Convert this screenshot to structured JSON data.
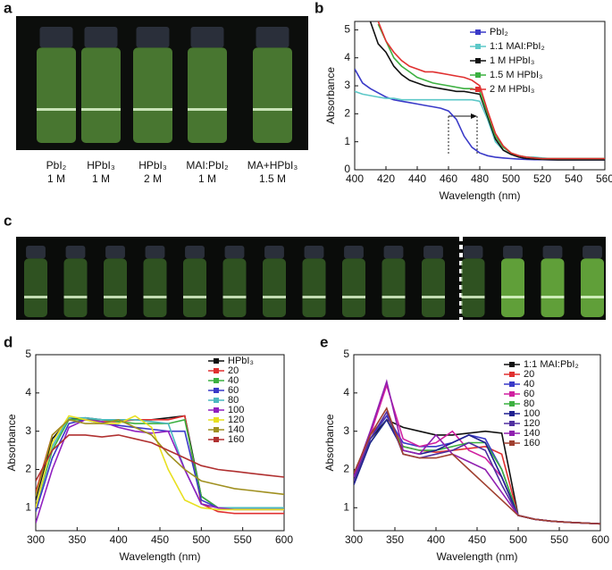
{
  "panel_labels": [
    "a",
    "b",
    "c",
    "d",
    "e"
  ],
  "photo_a": {
    "captions": [
      [
        "PbI₂",
        "1 M"
      ],
      [
        "HPbI₃",
        "1 M"
      ],
      [
        "HPbI₃",
        "2 M"
      ],
      [
        "MAI:PbI₂",
        "1 M"
      ],
      [
        "MA+HPbI₃",
        "1.5 M"
      ]
    ]
  },
  "chart_data": [
    {
      "type": "line",
      "xlabel": "Wavelength (nm)",
      "ylabel": "Absorbance",
      "x": [
        400,
        405,
        410,
        415,
        420,
        425,
        430,
        435,
        440,
        445,
        450,
        455,
        460,
        465,
        470,
        475,
        480,
        485,
        490,
        495,
        500,
        505,
        510,
        515,
        520,
        525,
        530,
        535,
        540,
        545,
        550,
        555,
        560
      ],
      "xlim": [
        400,
        560
      ],
      "xticks": [
        400,
        420,
        440,
        460,
        480,
        500,
        520,
        540,
        560
      ],
      "ylim": [
        0,
        5.3
      ],
      "yticks": [
        0,
        1,
        2,
        3,
        4,
        5
      ],
      "legend": "upper right",
      "series": [
        {
          "name": "PbI₂",
          "color": "#3a3ac8",
          "values": [
            3.6,
            3.1,
            2.9,
            2.75,
            2.6,
            2.5,
            2.45,
            2.4,
            2.35,
            2.3,
            2.25,
            2.2,
            2.1,
            1.8,
            1.2,
            0.8,
            0.6,
            0.5,
            0.45,
            0.42,
            0.4,
            0.38,
            0.37,
            0.36,
            0.36,
            0.35,
            0.35,
            0.35,
            0.35,
            0.35,
            0.35,
            0.35,
            0.35
          ]
        },
        {
          "name": "1:1 MAI:PbI₂",
          "color": "#5cc8c8",
          "values": [
            2.8,
            2.7,
            2.65,
            2.6,
            2.55,
            2.55,
            2.5,
            2.5,
            2.5,
            2.5,
            2.5,
            2.5,
            2.5,
            2.5,
            2.5,
            2.5,
            2.45,
            1.8,
            1.0,
            0.7,
            0.55,
            0.5,
            0.45,
            0.45,
            0.42,
            0.4,
            0.4,
            0.4,
            0.4,
            0.4,
            0.4,
            0.4,
            0.4
          ]
        },
        {
          "name": "1 M HPbI₃",
          "color": "#111111",
          "values": [
            null,
            null,
            5.3,
            4.5,
            4.2,
            3.7,
            3.4,
            3.2,
            3.1,
            3.0,
            2.95,
            2.9,
            2.85,
            2.8,
            2.8,
            2.75,
            2.7,
            1.9,
            1.1,
            0.7,
            0.55,
            0.45,
            0.4,
            0.38,
            0.37,
            0.36,
            0.35,
            0.35,
            0.35,
            0.35,
            0.35,
            0.35,
            0.35
          ]
        },
        {
          "name": "1.5 M HPbI₃",
          "color": "#3cb040",
          "values": [
            null,
            null,
            null,
            5.2,
            4.6,
            4.0,
            3.7,
            3.5,
            3.3,
            3.2,
            3.1,
            3.05,
            3.0,
            2.95,
            2.9,
            2.9,
            2.8,
            2.0,
            1.2,
            0.8,
            0.6,
            0.5,
            0.45,
            0.42,
            0.4,
            0.4,
            0.4,
            0.4,
            0.4,
            0.4,
            0.4,
            0.4,
            0.4
          ]
        },
        {
          "name": "2 M HPbI₃",
          "color": "#e03030",
          "values": [
            null,
            null,
            null,
            5.3,
            4.6,
            4.2,
            3.9,
            3.7,
            3.6,
            3.5,
            3.5,
            3.45,
            3.4,
            3.35,
            3.3,
            3.2,
            3.0,
            2.1,
            1.3,
            0.85,
            0.6,
            0.5,
            0.45,
            0.42,
            0.4,
            0.4,
            0.4,
            0.4,
            0.4,
            0.4,
            0.4,
            0.4,
            0.4
          ]
        }
      ]
    },
    {
      "type": "line",
      "xlabel": "Wavelength (nm)",
      "ylabel": "Absorbance",
      "x": [
        300,
        320,
        340,
        360,
        380,
        400,
        420,
        440,
        460,
        480,
        500,
        520,
        540,
        560,
        580,
        600
      ],
      "xlim": [
        300,
        600
      ],
      "xticks": [
        300,
        350,
        400,
        450,
        500,
        550,
        600
      ],
      "ylim": [
        0.4,
        5
      ],
      "yticks": [
        1,
        2,
        3,
        4,
        5
      ],
      "legend": "upper right",
      "series": [
        {
          "name": "HPbI₃",
          "color": "#111111",
          "values": [
            1.2,
            2.8,
            3.3,
            3.35,
            3.3,
            3.3,
            3.3,
            3.3,
            3.35,
            3.4,
            1.3,
            1.0,
            1.0,
            1.0,
            1.0,
            1.0
          ]
        },
        {
          "name": "20",
          "color": "#e03030",
          "values": [
            1.4,
            2.9,
            3.3,
            3.3,
            3.25,
            3.25,
            3.3,
            3.3,
            3.3,
            3.4,
            1.1,
            0.9,
            0.85,
            0.85,
            0.85,
            0.85
          ]
        },
        {
          "name": "40",
          "color": "#3cb040",
          "values": [
            1.0,
            2.5,
            3.3,
            3.3,
            3.3,
            3.25,
            3.2,
            3.2,
            3.2,
            3.3,
            1.3,
            1.0,
            1.0,
            1.0,
            1.0,
            1.0
          ]
        },
        {
          "name": "60",
          "color": "#3a3ac8",
          "values": [
            0.9,
            2.3,
            3.2,
            3.3,
            3.2,
            3.15,
            3.1,
            3.05,
            3.0,
            3.0,
            1.2,
            1.0,
            1.0,
            1.0,
            1.0,
            1.0
          ]
        },
        {
          "name": "80",
          "color": "#4cb8c0",
          "values": [
            1.0,
            2.6,
            3.35,
            3.35,
            3.3,
            3.3,
            3.3,
            3.25,
            3.2,
            2.0,
            1.1,
            1.0,
            1.0,
            1.0,
            1.0,
            1.0
          ]
        },
        {
          "name": "100",
          "color": "#9020c0",
          "values": [
            0.6,
            2.0,
            3.1,
            3.3,
            3.25,
            3.1,
            3.0,
            2.95,
            3.0,
            2.0,
            1.1,
            1.0,
            0.95,
            0.95,
            0.95,
            0.95
          ]
        },
        {
          "name": "120",
          "color": "#e8e020",
          "values": [
            1.0,
            2.7,
            3.4,
            3.3,
            3.2,
            3.2,
            3.4,
            3.1,
            2.0,
            1.2,
            1.0,
            0.95,
            0.95,
            0.95,
            0.95,
            0.95
          ]
        },
        {
          "name": "140",
          "color": "#a09020",
          "values": [
            1.3,
            2.9,
            3.3,
            3.2,
            3.2,
            3.3,
            3.1,
            2.9,
            2.4,
            2.0,
            1.7,
            1.6,
            1.5,
            1.45,
            1.4,
            1.35
          ]
        },
        {
          "name": "160",
          "color": "#b03030",
          "values": [
            1.7,
            2.5,
            2.9,
            2.9,
            2.85,
            2.9,
            2.8,
            2.7,
            2.5,
            2.3,
            2.1,
            2.0,
            1.95,
            1.9,
            1.85,
            1.8
          ]
        }
      ]
    },
    {
      "type": "line",
      "xlabel": "Wavelength (nm)",
      "ylabel": "Absorbance",
      "x": [
        300,
        320,
        340,
        360,
        380,
        400,
        420,
        440,
        460,
        480,
        500,
        520,
        540,
        560,
        580,
        600
      ],
      "xlim": [
        300,
        600
      ],
      "xticks": [
        300,
        350,
        400,
        450,
        500,
        550,
        600
      ],
      "ylim": [
        0.4,
        5
      ],
      "yticks": [
        1,
        2,
        3,
        4,
        5
      ],
      "legend": "upper right",
      "series": [
        {
          "name": "1:1 MAI:PbI₂",
          "color": "#111111",
          "values": [
            1.8,
            2.8,
            3.3,
            3.1,
            3.0,
            2.9,
            2.9,
            2.95,
            3.0,
            2.95,
            0.8,
            0.7,
            0.65,
            0.62,
            0.6,
            0.58
          ]
        },
        {
          "name": "20",
          "color": "#e03030",
          "values": [
            1.8,
            2.9,
            3.4,
            2.6,
            2.5,
            2.45,
            2.5,
            2.55,
            2.6,
            2.4,
            0.8,
            0.7,
            0.65,
            0.62,
            0.6,
            0.58
          ]
        },
        {
          "name": "40",
          "color": "#3a3ac8",
          "values": [
            1.7,
            2.8,
            3.4,
            2.7,
            2.6,
            2.6,
            2.7,
            2.9,
            2.8,
            2.0,
            0.8,
            0.7,
            0.65,
            0.62,
            0.6,
            0.58
          ]
        },
        {
          "name": "60",
          "color": "#d020a0",
          "values": [
            1.8,
            2.9,
            4.2,
            2.8,
            2.6,
            2.7,
            3.0,
            2.5,
            2.3,
            1.8,
            0.8,
            0.7,
            0.65,
            0.62,
            0.6,
            0.58
          ]
        },
        {
          "name": "80",
          "color": "#3cb040",
          "values": [
            1.7,
            2.7,
            3.3,
            2.6,
            2.5,
            2.5,
            2.6,
            2.7,
            2.7,
            2.0,
            0.8,
            0.7,
            0.65,
            0.62,
            0.6,
            0.58
          ]
        },
        {
          "name": "100",
          "color": "#202090",
          "values": [
            1.6,
            2.7,
            3.3,
            2.5,
            2.4,
            2.5,
            2.7,
            2.9,
            2.7,
            1.8,
            0.8,
            0.7,
            0.65,
            0.62,
            0.6,
            0.58
          ]
        },
        {
          "name": "120",
          "color": "#5030a0",
          "values": [
            1.7,
            2.8,
            3.5,
            2.4,
            2.3,
            2.4,
            2.5,
            2.7,
            2.5,
            1.6,
            0.8,
            0.7,
            0.65,
            0.62,
            0.6,
            0.58
          ]
        },
        {
          "name": "140",
          "color": "#9020b0",
          "values": [
            1.8,
            3.0,
            4.3,
            2.5,
            2.4,
            2.9,
            2.4,
            2.2,
            2.0,
            1.4,
            0.8,
            0.7,
            0.65,
            0.62,
            0.6,
            0.58
          ]
        },
        {
          "name": "160",
          "color": "#a04030",
          "values": [
            1.9,
            2.9,
            3.6,
            2.4,
            2.3,
            2.3,
            2.4,
            2.0,
            1.6,
            1.2,
            0.8,
            0.7,
            0.65,
            0.62,
            0.6,
            0.58
          ]
        }
      ]
    }
  ]
}
